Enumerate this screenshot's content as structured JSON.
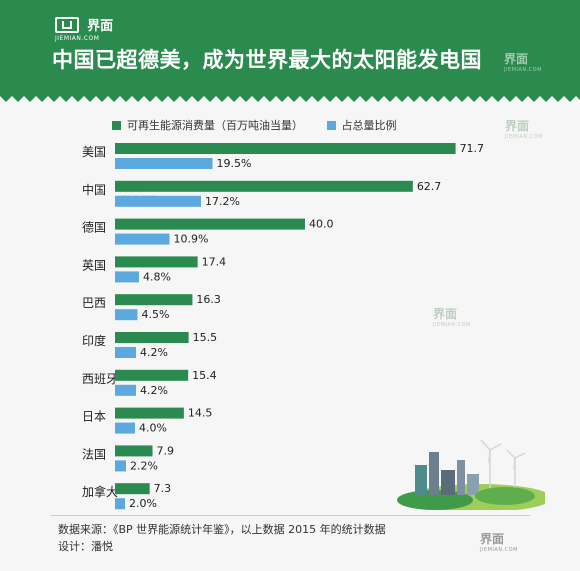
{
  "brand": {
    "name": "界面",
    "sub": "JIEMIAN.COM"
  },
  "title": "中国已超德美，成为世界最大的太阳能发电国",
  "legend": {
    "series1": "可再生能源消费量（百万吨油当量）",
    "series2": "占总量比例"
  },
  "colors": {
    "header": "#2b8a4e",
    "series1": "#2a8a4f",
    "series2": "#5ba9de",
    "background": "#f6f6f6"
  },
  "chart_data": {
    "type": "bar",
    "orientation": "horizontal",
    "title": "中国已超德美，成为世界最大的太阳能发电国",
    "categories": [
      "美国",
      "中国",
      "德国",
      "英国",
      "巴西",
      "印度",
      "西班牙",
      "日本",
      "法国",
      "加拿大"
    ],
    "series": [
      {
        "name": "可再生能源消费量（百万吨油当量）",
        "values": [
          71.7,
          62.7,
          40.0,
          17.4,
          16.3,
          15.5,
          15.4,
          14.5,
          7.9,
          7.3
        ],
        "labels": [
          "71.7",
          "62.7",
          "40.0",
          "17.4",
          "16.3",
          "15.5",
          "15.4",
          "14.5",
          "7.9",
          "7.3"
        ]
      },
      {
        "name": "占总量比例",
        "values": [
          19.5,
          17.2,
          10.9,
          4.8,
          4.5,
          4.2,
          4.2,
          4.0,
          2.2,
          2.0
        ],
        "labels": [
          "19.5%",
          "17.2%",
          "10.9%",
          "4.8%",
          "4.5%",
          "4.2%",
          "4.2%",
          "4.0%",
          "2.2%",
          "2.0%"
        ]
      }
    ],
    "legend_position": "top",
    "grid": false
  },
  "footer": {
    "source": "数据来源：《BP 世界能源统计年鉴》，以上数据 2015 年的统计数据",
    "designer": "设计：潘悦"
  }
}
